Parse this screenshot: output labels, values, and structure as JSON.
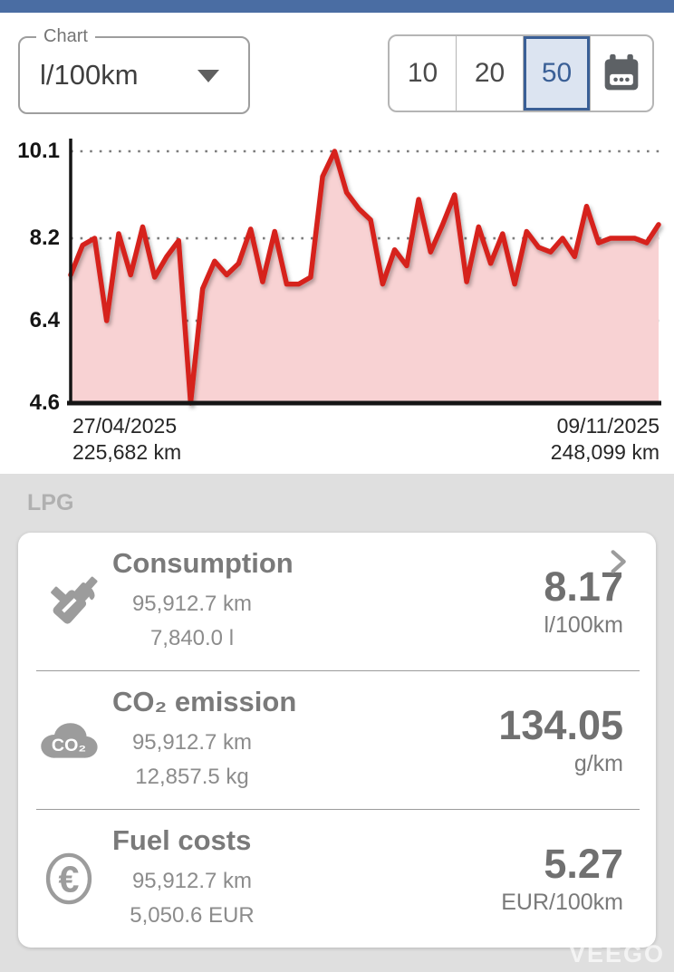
{
  "app": {
    "watermark": "VEEGO",
    "top_bar_color": "#4a6da3"
  },
  "toolbar": {
    "chart_select": {
      "label": "Chart",
      "value": "l/100km"
    },
    "range_buttons": [
      {
        "label": "10",
        "selected": false
      },
      {
        "label": "20",
        "selected": false
      },
      {
        "label": "50",
        "selected": true
      }
    ]
  },
  "chart_data": {
    "type": "line",
    "series_label": "l/100km",
    "ylim": [
      4.6,
      10.1
    ],
    "y_ticks": [
      10.1,
      8.2,
      6.4,
      4.6
    ],
    "grid": "dotted horizontal",
    "legend": "none",
    "line_color": "#d6201f",
    "fill_color": "#f8d2d3",
    "values": [
      7.4,
      8.05,
      8.2,
      6.4,
      8.3,
      7.4,
      8.45,
      7.35,
      7.8,
      8.15,
      4.6,
      7.1,
      7.7,
      7.4,
      7.65,
      8.4,
      7.25,
      8.35,
      7.2,
      7.2,
      7.35,
      9.55,
      10.1,
      9.2,
      8.85,
      8.6,
      7.2,
      7.95,
      7.6,
      9.05,
      7.9,
      8.5,
      9.15,
      7.25,
      8.45,
      7.65,
      8.3,
      7.2,
      8.35,
      8.0,
      7.9,
      8.2,
      7.8,
      8.9,
      8.1,
      8.2,
      8.2,
      8.2,
      8.1,
      8.5
    ],
    "x_axis": {
      "start": {
        "date": "27/04/2025",
        "odometer": "225,682 km"
      },
      "end": {
        "date": "09/11/2025",
        "odometer": "248,099 km"
      }
    }
  },
  "stats": {
    "section_label": "LPG",
    "rows": [
      {
        "icon": "fuel-nozzle-icon",
        "title": "Consumption",
        "line1": "95,912.7 km",
        "line2": "7,840.0 l",
        "value": "8.17",
        "unit": "l/100km",
        "chevron": true
      },
      {
        "icon": "co2-cloud-icon",
        "icon_text": "CO₂",
        "title": "CO₂ emission",
        "line1": "95,912.7 km",
        "line2": "12,857.5 kg",
        "value": "134.05",
        "unit": "g/km",
        "chevron": false
      },
      {
        "icon": "euro-icon",
        "title": "Fuel costs",
        "line1": "95,912.7 km",
        "line2": "5,050.6 EUR",
        "value": "5.27",
        "unit": "EUR/100km",
        "chevron": false
      }
    ]
  }
}
